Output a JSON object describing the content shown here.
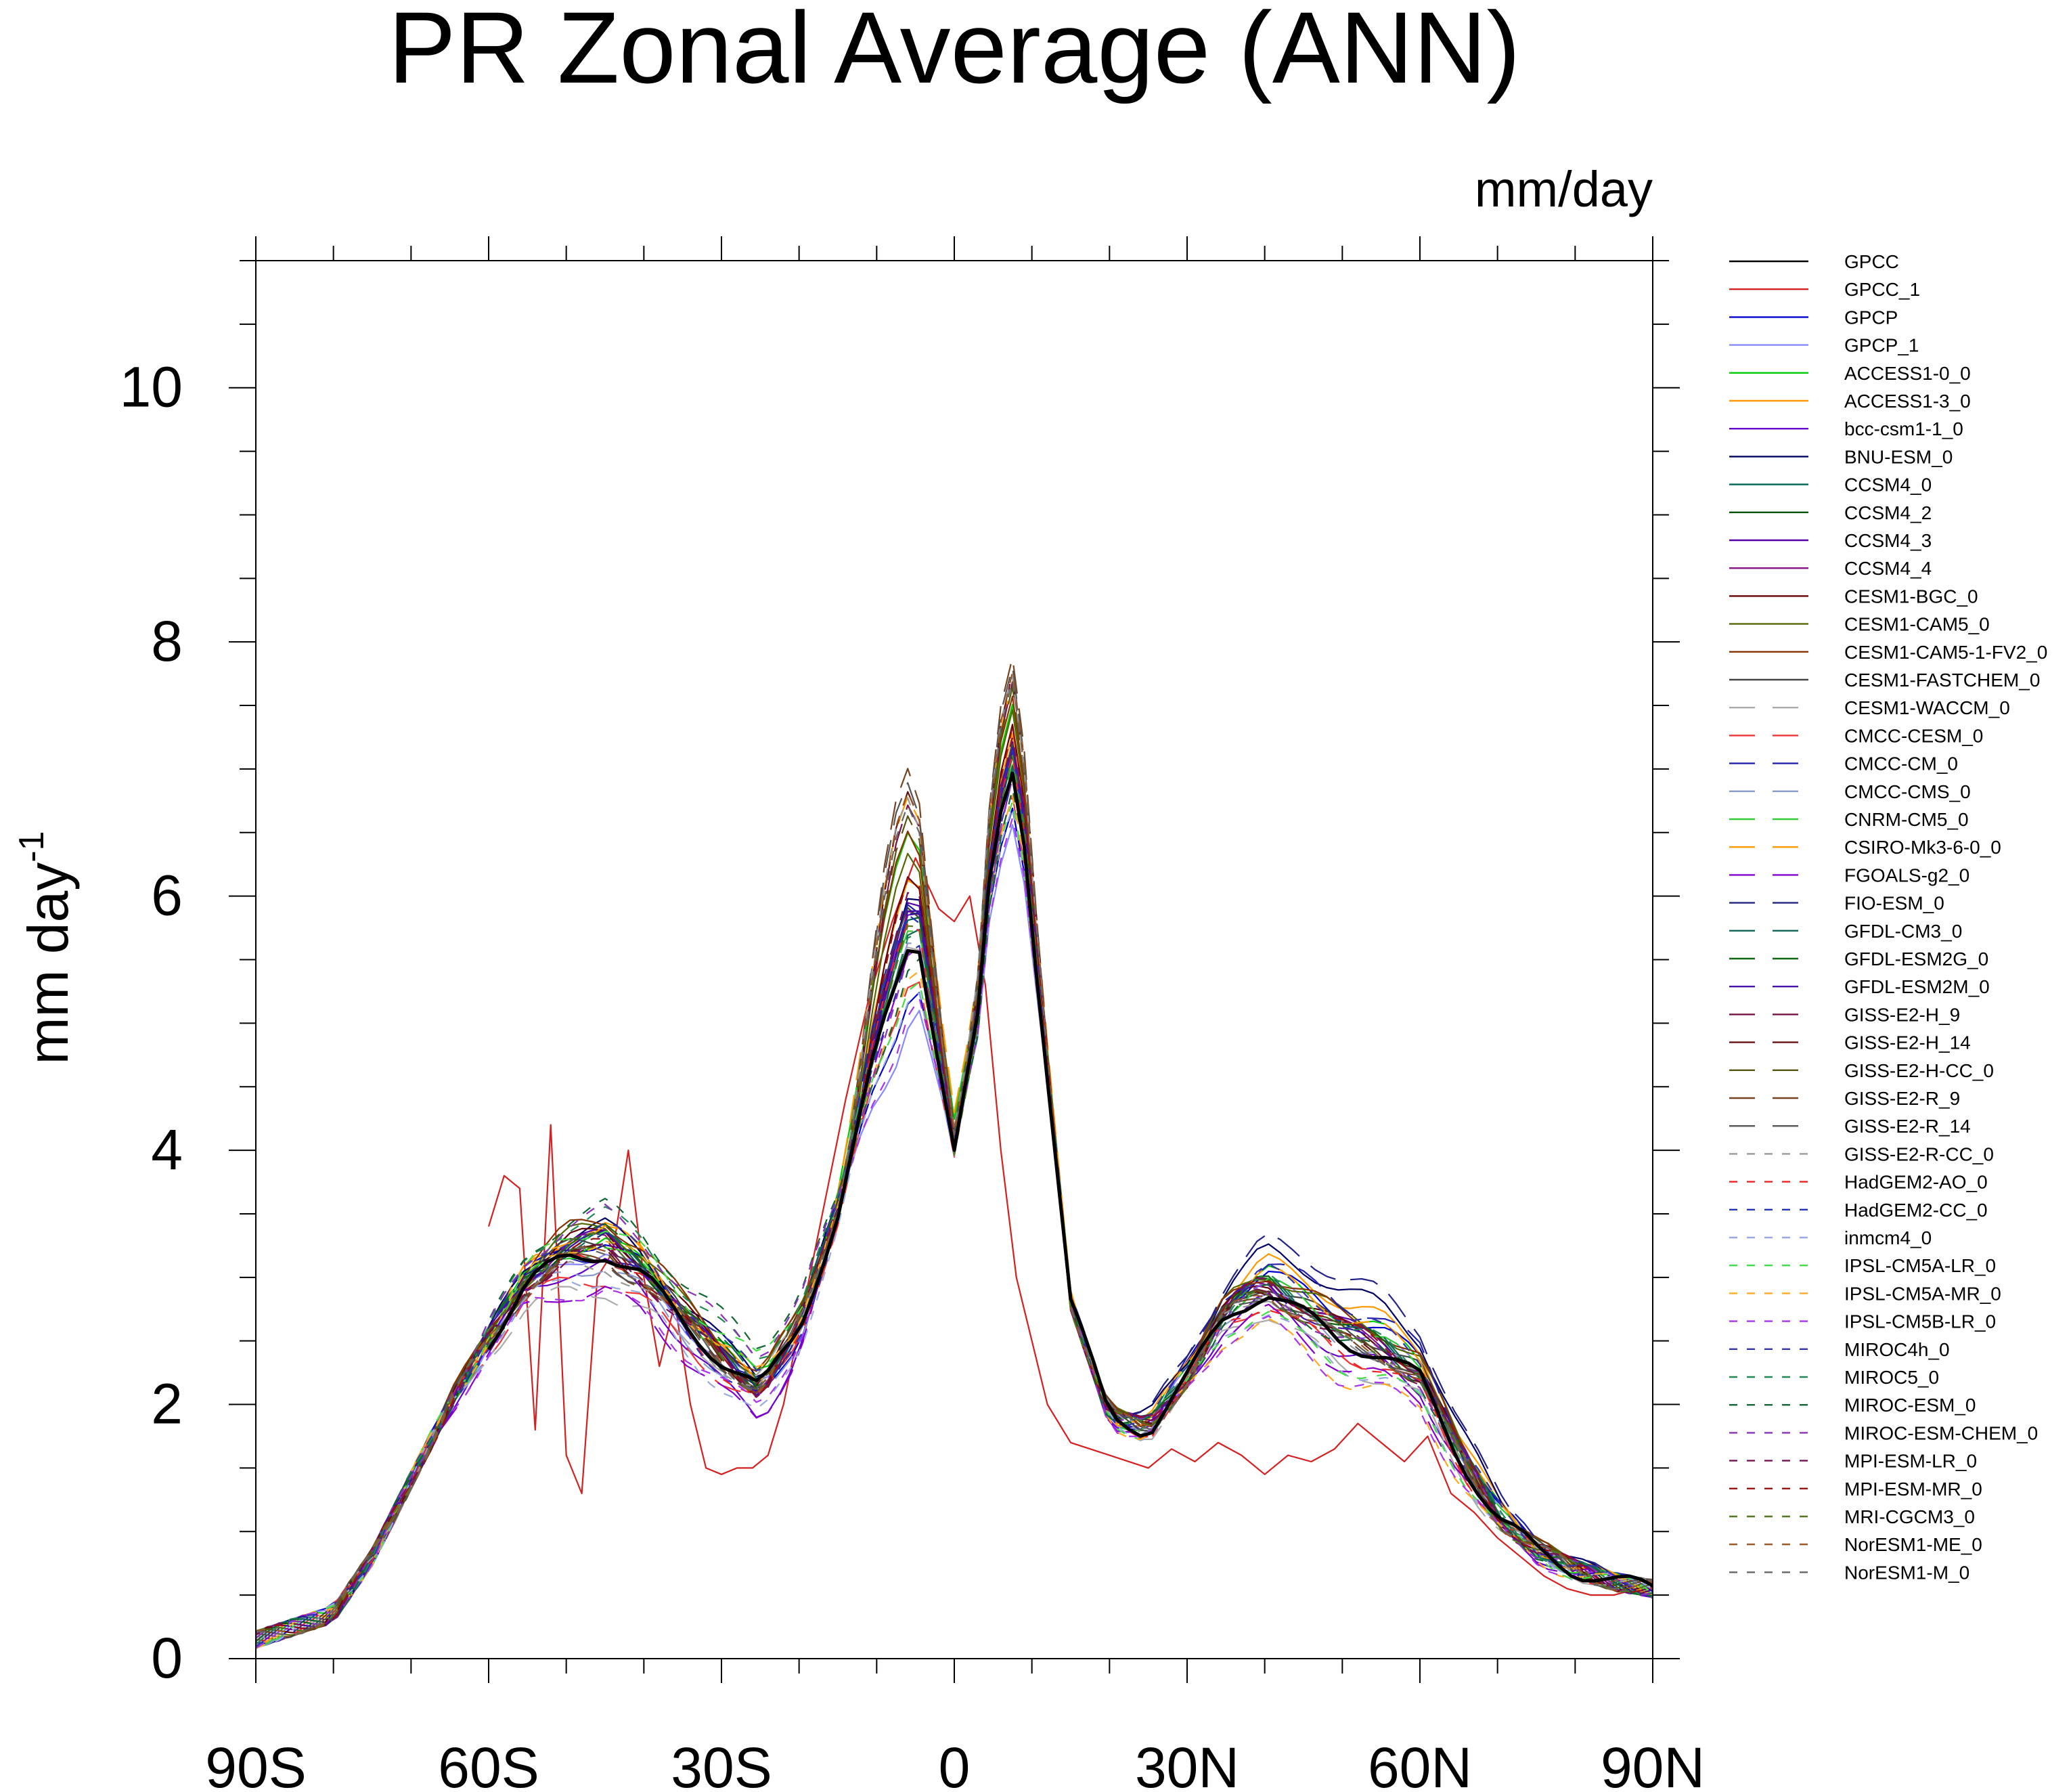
{
  "chart_data": {
    "type": "line",
    "title": "PR Zonal Average (ANN)",
    "units": "mm/day",
    "ylabel": "mm day",
    "ylabel_exponent": "-1",
    "xlim": [
      -90,
      90
    ],
    "ylim": [
      0,
      11
    ],
    "x_ticks": [
      {
        "value": -90,
        "label": "90S"
      },
      {
        "value": -60,
        "label": "60S"
      },
      {
        "value": -30,
        "label": "30S"
      },
      {
        "value": 0,
        "label": "0"
      },
      {
        "value": 30,
        "label": "30N"
      },
      {
        "value": 60,
        "label": "60N"
      },
      {
        "value": 90,
        "label": "90N"
      }
    ],
    "y_ticks": [
      {
        "value": 0,
        "label": "0"
      },
      {
        "value": 2,
        "label": "2"
      },
      {
        "value": 4,
        "label": "4"
      },
      {
        "value": 6,
        "label": "6"
      },
      {
        "value": 8,
        "label": "8"
      },
      {
        "value": 10,
        "label": "10"
      }
    ],
    "grid": false,
    "legend_position": "right",
    "base_latitudes": [
      -90,
      -85,
      -80,
      -75,
      -70,
      -65,
      -60,
      -55,
      -50,
      -45,
      -40,
      -35,
      -30,
      -25,
      -20,
      -15,
      -10,
      -5,
      0,
      3,
      5,
      8,
      10,
      15,
      20,
      25,
      30,
      35,
      40,
      45,
      50,
      55,
      60,
      65,
      70,
      75,
      80,
      85,
      90
    ],
    "base_profile": [
      0.15,
      0.25,
      0.35,
      0.8,
      1.4,
      2.0,
      2.5,
      2.95,
      3.15,
      3.2,
      3.0,
      2.65,
      2.35,
      2.1,
      2.6,
      3.5,
      4.8,
      5.8,
      4.0,
      5.0,
      6.4,
      7.1,
      5.8,
      2.8,
      1.9,
      1.8,
      2.2,
      2.7,
      2.9,
      2.7,
      2.5,
      2.4,
      2.2,
      1.6,
      1.1,
      0.85,
      0.7,
      0.6,
      0.55
    ],
    "series": [
      {
        "name": "GPCC",
        "color": "#000000",
        "dash": "solid",
        "bold": true,
        "start_lat": -60,
        "perturb": {
          "sh": 0.0,
          "sub": 0.0,
          "itcz": 0.0,
          "nh": 0.0
        }
      },
      {
        "name": "GPCC_1",
        "color": "#d42020",
        "dash": "solid",
        "start_lat": -60,
        "special": "gpcc1"
      },
      {
        "name": "GPCP",
        "color": "#0000cc",
        "dash": "solid",
        "perturb": {
          "sh": 0.1,
          "sub": -0.1,
          "itcz": -0.4,
          "nh": 0.2
        }
      },
      {
        "name": "GPCP_1",
        "color": "#8888ff",
        "dash": "solid",
        "perturb": {
          "sh": 0.0,
          "sub": 0.0,
          "itcz": -0.6,
          "nh": 0.1
        }
      },
      {
        "name": "ACCESS1-0_0",
        "color": "#00cc00",
        "dash": "solid",
        "perturb": {
          "sh": 0.1,
          "sub": 0.1,
          "itcz": 1.0,
          "nh": 0.2
        }
      },
      {
        "name": "ACCESS1-3_0",
        "color": "#ff9900",
        "dash": "solid",
        "perturb": {
          "sh": 0.2,
          "sub": 0.0,
          "itcz": 0.6,
          "nh": 0.3
        }
      },
      {
        "name": "bcc-csm1-1_0",
        "color": "#6600cc",
        "dash": "solid",
        "perturb": {
          "sh": -0.1,
          "sub": -0.2,
          "itcz": 0.3,
          "nh": -0.1
        }
      },
      {
        "name": "BNU-ESM_0",
        "color": "#000066",
        "dash": "solid",
        "perturb": {
          "sh": 0.2,
          "sub": 0.1,
          "itcz": 0.4,
          "nh": 0.4
        }
      },
      {
        "name": "CCSM4_0",
        "color": "#006655",
        "dash": "solid",
        "perturb": {
          "sh": 0.1,
          "sub": 0.0,
          "itcz": 0.2,
          "nh": 0.1
        }
      },
      {
        "name": "CCSM4_2",
        "color": "#005500",
        "dash": "solid",
        "perturb": {
          "sh": 0.1,
          "sub": 0.0,
          "itcz": 0.25,
          "nh": 0.1
        }
      },
      {
        "name": "CCSM4_3",
        "color": "#5500aa",
        "dash": "solid",
        "perturb": {
          "sh": 0.12,
          "sub": 0.02,
          "itcz": 0.3,
          "nh": 0.12
        }
      },
      {
        "name": "CCSM4_4",
        "color": "#881188",
        "dash": "solid",
        "perturb": {
          "sh": 0.1,
          "sub": 0.01,
          "itcz": 0.22,
          "nh": 0.1
        }
      },
      {
        "name": "CESM1-BGC_0",
        "color": "#660000",
        "dash": "solid",
        "perturb": {
          "sh": 0.15,
          "sub": 0.05,
          "itcz": 0.5,
          "nh": 0.1
        }
      },
      {
        "name": "CESM1-CAM5_0",
        "color": "#556600",
        "dash": "solid",
        "perturb": {
          "sh": 0.2,
          "sub": 0.1,
          "itcz": 0.7,
          "nh": 0.2
        }
      },
      {
        "name": "CESM1-CAM5-1-FV2_0",
        "color": "#883300",
        "dash": "solid",
        "perturb": {
          "sh": 0.25,
          "sub": 0.1,
          "itcz": 0.9,
          "nh": 0.2
        }
      },
      {
        "name": "CESM1-FASTCHEM_0",
        "color": "#444444",
        "dash": "solid",
        "perturb": {
          "sh": 0.1,
          "sub": 0.0,
          "itcz": 0.3,
          "nh": 0.1
        }
      },
      {
        "name": "CESM1-WACCM_0",
        "color": "#aaaaaa",
        "dash": "long",
        "perturb": {
          "sh": -0.3,
          "sub": 0.1,
          "itcz": 0.0,
          "nh": -0.2
        }
      },
      {
        "name": "CMCC-CESM_0",
        "color": "#ee3333",
        "dash": "long",
        "perturb": {
          "sh": -0.2,
          "sub": -0.1,
          "itcz": -0.3,
          "nh": -0.1
        }
      },
      {
        "name": "CMCC-CM_0",
        "color": "#2222aa",
        "dash": "long",
        "perturb": {
          "sh": 0.0,
          "sub": 0.0,
          "itcz": 0.4,
          "nh": 0.3
        }
      },
      {
        "name": "CMCC-CMS_0",
        "color": "#8899cc",
        "dash": "long",
        "perturb": {
          "sh": -0.1,
          "sub": -0.1,
          "itcz": 0.1,
          "nh": 0.0
        }
      },
      {
        "name": "CNRM-CM5_0",
        "color": "#33cc33",
        "dash": "long",
        "perturb": {
          "sh": 0.05,
          "sub": 0.1,
          "itcz": 0.2,
          "nh": 0.1
        }
      },
      {
        "name": "CSIRO-Mk3-6-0_0",
        "color": "#ff9900",
        "dash": "long",
        "perturb": {
          "sh": 0.2,
          "sub": 0.0,
          "itcz": 1.3,
          "nh": 0.2
        }
      },
      {
        "name": "FGOALS-g2_0",
        "color": "#8800cc",
        "dash": "long",
        "perturb": {
          "sh": -0.3,
          "sub": -0.2,
          "itcz": 0.0,
          "nh": -0.2
        }
      },
      {
        "name": "FIO-ESM_0",
        "color": "#222288",
        "dash": "long",
        "perturb": {
          "sh": 0.1,
          "sub": 0.0,
          "itcz": 0.3,
          "nh": 0.5
        }
      },
      {
        "name": "GFDL-CM3_0",
        "color": "#116655",
        "dash": "long",
        "perturb": {
          "sh": 0.1,
          "sub": 0.1,
          "itcz": 0.1,
          "nh": 0.1
        }
      },
      {
        "name": "GFDL-ESM2G_0",
        "color": "#116611",
        "dash": "long",
        "perturb": {
          "sh": 0.15,
          "sub": 0.05,
          "itcz": 0.2,
          "nh": 0.1
        }
      },
      {
        "name": "GFDL-ESM2M_0",
        "color": "#4411aa",
        "dash": "long",
        "perturb": {
          "sh": 0.1,
          "sub": 0.0,
          "itcz": 0.25,
          "nh": 0.05
        }
      },
      {
        "name": "GISS-E2-H_9",
        "color": "#771144",
        "dash": "long",
        "perturb": {
          "sh": 0.0,
          "sub": 0.0,
          "itcz": 1.1,
          "nh": 0.0
        }
      },
      {
        "name": "GISS-E2-H_14",
        "color": "#661111",
        "dash": "long",
        "perturb": {
          "sh": 0.0,
          "sub": 0.0,
          "itcz": 1.2,
          "nh": 0.0
        }
      },
      {
        "name": "GISS-E2-H-CC_0",
        "color": "#555511",
        "dash": "long",
        "perturb": {
          "sh": 0.0,
          "sub": 0.05,
          "itcz": 1.0,
          "nh": 0.05
        }
      },
      {
        "name": "GISS-E2-R_9",
        "color": "#774422",
        "dash": "long",
        "perturb": {
          "sh": -0.05,
          "sub": 0.0,
          "itcz": 1.4,
          "nh": 0.0
        }
      },
      {
        "name": "GISS-E2-R_14",
        "color": "#555555",
        "dash": "long",
        "perturb": {
          "sh": -0.05,
          "sub": 0.0,
          "itcz": 1.3,
          "nh": 0.0
        }
      },
      {
        "name": "GISS-E2-R-CC_0",
        "color": "#999999",
        "dash": "short",
        "perturb": {
          "sh": -0.1,
          "sub": 0.0,
          "itcz": 1.2,
          "nh": 0.0
        }
      },
      {
        "name": "HadGEM2-AO_0",
        "color": "#ee2222",
        "dash": "short",
        "perturb": {
          "sh": 0.0,
          "sub": -0.1,
          "itcz": 0.2,
          "nh": -0.1
        }
      },
      {
        "name": "HadGEM2-CC_0",
        "color": "#2233bb",
        "dash": "short",
        "perturb": {
          "sh": 0.0,
          "sub": -0.1,
          "itcz": 0.3,
          "nh": 0.0
        }
      },
      {
        "name": "inmcm4_0",
        "color": "#99aadd",
        "dash": "short",
        "perturb": {
          "sh": -0.2,
          "sub": -0.2,
          "itcz": -0.4,
          "nh": -0.2
        }
      },
      {
        "name": "IPSL-CM5A-LR_0",
        "color": "#44dd44",
        "dash": "short",
        "perturb": {
          "sh": 0.2,
          "sub": 0.2,
          "itcz": -0.3,
          "nh": -0.2
        }
      },
      {
        "name": "IPSL-CM5A-MR_0",
        "color": "#ffaa22",
        "dash": "short",
        "perturb": {
          "sh": 0.1,
          "sub": 0.1,
          "itcz": -0.2,
          "nh": -0.3
        }
      },
      {
        "name": "IPSL-CM5B-LR_0",
        "color": "#aa33ee",
        "dash": "short",
        "perturb": {
          "sh": -0.3,
          "sub": -0.1,
          "itcz": -0.5,
          "nh": -0.3
        }
      },
      {
        "name": "MIROC4h_0",
        "color": "#3333aa",
        "dash": "short",
        "perturb": {
          "sh": 0.2,
          "sub": 0.1,
          "itcz": 0.0,
          "nh": 0.2
        }
      },
      {
        "name": "MIROC5_0",
        "color": "#228855",
        "dash": "short",
        "perturb": {
          "sh": 0.3,
          "sub": 0.2,
          "itcz": 0.1,
          "nh": 0.1
        }
      },
      {
        "name": "MIROC-ESM_0",
        "color": "#116633",
        "dash": "short",
        "perturb": {
          "sh": 0.35,
          "sub": 0.3,
          "itcz": -0.2,
          "nh": 0.0
        }
      },
      {
        "name": "MIROC-ESM-CHEM_0",
        "color": "#8833bb",
        "dash": "short",
        "perturb": {
          "sh": 0.3,
          "sub": 0.25,
          "itcz": -0.1,
          "nh": 0.0
        }
      },
      {
        "name": "MPI-ESM-LR_0",
        "color": "#771155",
        "dash": "short",
        "perturb": {
          "sh": 0.0,
          "sub": 0.0,
          "itcz": 0.4,
          "nh": 0.1
        }
      },
      {
        "name": "MPI-ESM-MR_0",
        "color": "#991111",
        "dash": "short",
        "perturb": {
          "sh": 0.05,
          "sub": 0.0,
          "itcz": 0.5,
          "nh": 0.1
        }
      },
      {
        "name": "MRI-CGCM3_0",
        "color": "#557722",
        "dash": "short",
        "perturb": {
          "sh": 0.1,
          "sub": 0.0,
          "itcz": 0.1,
          "nh": 0.0
        }
      },
      {
        "name": "NorESM1-ME_0",
        "color": "#995522",
        "dash": "short",
        "perturb": {
          "sh": 0.0,
          "sub": 0.0,
          "itcz": 1.2,
          "nh": 0.0
        }
      },
      {
        "name": "NorESM1-M_0",
        "color": "#666666",
        "dash": "short",
        "perturb": {
          "sh": 0.0,
          "sub": 0.0,
          "itcz": 1.1,
          "nh": 0.0
        }
      }
    ],
    "gpcc1_profile": {
      "x": [
        -60,
        -58,
        -56,
        -54,
        -52,
        -50,
        -48,
        -46,
        -44,
        -42,
        -40,
        -38,
        -36,
        -34,
        -32,
        -30,
        -28,
        -26,
        -24,
        -22,
        -20,
        -17,
        -14,
        -11,
        -8,
        -5,
        -2,
        0,
        2,
        4,
        6,
        8,
        10,
        12,
        15,
        20,
        25,
        28,
        31,
        34,
        37,
        40,
        43,
        46,
        49,
        52,
        55,
        58,
        61,
        64,
        67,
        70,
        73,
        76,
        79,
        82,
        85,
        88,
        90
      ],
      "y": [
        3.4,
        3.8,
        3.7,
        1.8,
        4.2,
        1.6,
        1.3,
        3.0,
        3.2,
        4.0,
        3.0,
        2.3,
        2.8,
        2.0,
        1.5,
        1.45,
        1.5,
        1.5,
        1.6,
        2.0,
        2.6,
        3.5,
        4.4,
        5.2,
        5.8,
        6.3,
        5.9,
        5.8,
        6.0,
        5.3,
        4.0,
        3.0,
        2.5,
        2.0,
        1.7,
        1.6,
        1.5,
        1.65,
        1.55,
        1.7,
        1.6,
        1.45,
        1.6,
        1.55,
        1.65,
        1.85,
        1.7,
        1.55,
        1.75,
        1.3,
        1.15,
        0.95,
        0.8,
        0.65,
        0.55,
        0.5,
        0.5,
        0.55,
        0.55
      ]
    }
  }
}
